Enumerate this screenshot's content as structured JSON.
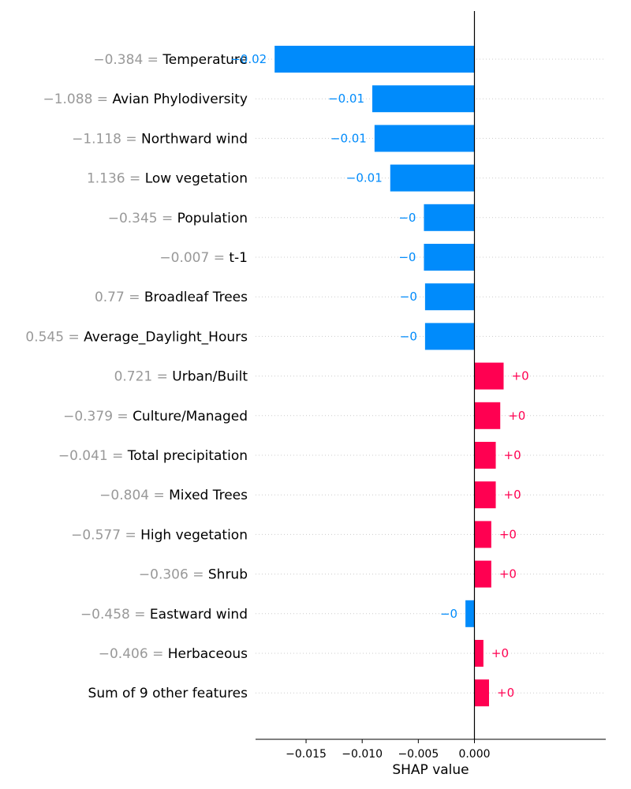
{
  "chart_data": {
    "type": "bar",
    "orientation": "horizontal",
    "xlabel": "SHAP value",
    "xlim": [
      -0.0195,
      0.0117
    ],
    "xticks": [
      -0.015,
      -0.01,
      -0.005,
      0.0
    ],
    "xtick_labels": [
      "−0.015",
      "−0.010",
      "−0.005",
      "0.000"
    ],
    "grid": "horizontal dotted",
    "colors": {
      "negative": "#008bfb",
      "positive": "#ff0051",
      "value_text": "#999999"
    },
    "features": [
      {
        "value": "−0.384",
        "name": "Temperature",
        "shap": -0.0178,
        "label": "−0.02"
      },
      {
        "value": "−1.088",
        "name": "Avian Phylodiversity",
        "shap": -0.0091,
        "label": "−0.01"
      },
      {
        "value": "−1.118",
        "name": "Northward wind",
        "shap": -0.0089,
        "label": "−0.01"
      },
      {
        "value": "1.136",
        "name": "Low vegetation",
        "shap": -0.0075,
        "label": "−0.01"
      },
      {
        "value": "−0.345",
        "name": "Population",
        "shap": -0.0045,
        "label": "−0"
      },
      {
        "value": "−0.007",
        "name": "t-1",
        "shap": -0.0045,
        "label": "−0"
      },
      {
        "value": "0.77",
        "name": "Broadleaf Trees",
        "shap": -0.0044,
        "label": "−0"
      },
      {
        "value": "0.545",
        "name": "Average_Daylight_Hours",
        "shap": -0.0044,
        "label": "−0"
      },
      {
        "value": "0.721",
        "name": "Urban/Built",
        "shap": 0.0026,
        "label": "+0"
      },
      {
        "value": "−0.379",
        "name": "Culture/Managed",
        "shap": 0.0023,
        "label": "+0"
      },
      {
        "value": "−0.041",
        "name": "Total precipitation",
        "shap": 0.0019,
        "label": "+0"
      },
      {
        "value": "−0.804",
        "name": "Mixed Trees",
        "shap": 0.0019,
        "label": "+0"
      },
      {
        "value": "−0.577",
        "name": "High vegetation",
        "shap": 0.0015,
        "label": "+0"
      },
      {
        "value": "−0.306",
        "name": "Shrub",
        "shap": 0.0015,
        "label": "+0"
      },
      {
        "value": "−0.458",
        "name": "Eastward wind",
        "shap": -0.0008,
        "label": "−0"
      },
      {
        "value": "−0.406",
        "name": "Herbaceous",
        "shap": 0.0008,
        "label": "+0"
      },
      {
        "value": "",
        "name": "Sum of 9 other features",
        "shap": 0.0013,
        "label": "+0"
      }
    ]
  }
}
